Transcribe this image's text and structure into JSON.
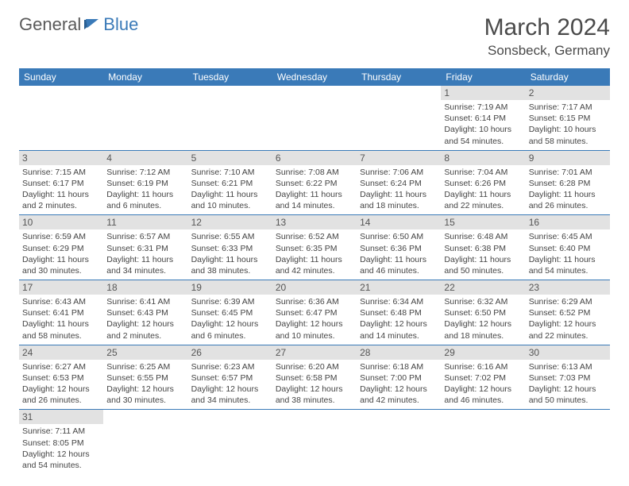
{
  "logo": {
    "main": "General",
    "accent": "Blue"
  },
  "title": "March 2024",
  "location": "Sonsbeck, Germany",
  "colors": {
    "header_bg": "#3a7ab8",
    "header_fg": "#ffffff",
    "daynum_bg": "#e2e2e2",
    "row_border": "#3a7ab8",
    "logo_gray": "#5a5a5a",
    "logo_blue": "#3a7ab8"
  },
  "weekdays": [
    "Sunday",
    "Monday",
    "Tuesday",
    "Wednesday",
    "Thursday",
    "Friday",
    "Saturday"
  ],
  "weeks": [
    [
      null,
      null,
      null,
      null,
      null,
      {
        "n": "1",
        "sr": "Sunrise: 7:19 AM",
        "ss": "Sunset: 6:14 PM",
        "dl": "Daylight: 10 hours and 54 minutes."
      },
      {
        "n": "2",
        "sr": "Sunrise: 7:17 AM",
        "ss": "Sunset: 6:15 PM",
        "dl": "Daylight: 10 hours and 58 minutes."
      }
    ],
    [
      {
        "n": "3",
        "sr": "Sunrise: 7:15 AM",
        "ss": "Sunset: 6:17 PM",
        "dl": "Daylight: 11 hours and 2 minutes."
      },
      {
        "n": "4",
        "sr": "Sunrise: 7:12 AM",
        "ss": "Sunset: 6:19 PM",
        "dl": "Daylight: 11 hours and 6 minutes."
      },
      {
        "n": "5",
        "sr": "Sunrise: 7:10 AM",
        "ss": "Sunset: 6:21 PM",
        "dl": "Daylight: 11 hours and 10 minutes."
      },
      {
        "n": "6",
        "sr": "Sunrise: 7:08 AM",
        "ss": "Sunset: 6:22 PM",
        "dl": "Daylight: 11 hours and 14 minutes."
      },
      {
        "n": "7",
        "sr": "Sunrise: 7:06 AM",
        "ss": "Sunset: 6:24 PM",
        "dl": "Daylight: 11 hours and 18 minutes."
      },
      {
        "n": "8",
        "sr": "Sunrise: 7:04 AM",
        "ss": "Sunset: 6:26 PM",
        "dl": "Daylight: 11 hours and 22 minutes."
      },
      {
        "n": "9",
        "sr": "Sunrise: 7:01 AM",
        "ss": "Sunset: 6:28 PM",
        "dl": "Daylight: 11 hours and 26 minutes."
      }
    ],
    [
      {
        "n": "10",
        "sr": "Sunrise: 6:59 AM",
        "ss": "Sunset: 6:29 PM",
        "dl": "Daylight: 11 hours and 30 minutes."
      },
      {
        "n": "11",
        "sr": "Sunrise: 6:57 AM",
        "ss": "Sunset: 6:31 PM",
        "dl": "Daylight: 11 hours and 34 minutes."
      },
      {
        "n": "12",
        "sr": "Sunrise: 6:55 AM",
        "ss": "Sunset: 6:33 PM",
        "dl": "Daylight: 11 hours and 38 minutes."
      },
      {
        "n": "13",
        "sr": "Sunrise: 6:52 AM",
        "ss": "Sunset: 6:35 PM",
        "dl": "Daylight: 11 hours and 42 minutes."
      },
      {
        "n": "14",
        "sr": "Sunrise: 6:50 AM",
        "ss": "Sunset: 6:36 PM",
        "dl": "Daylight: 11 hours and 46 minutes."
      },
      {
        "n": "15",
        "sr": "Sunrise: 6:48 AM",
        "ss": "Sunset: 6:38 PM",
        "dl": "Daylight: 11 hours and 50 minutes."
      },
      {
        "n": "16",
        "sr": "Sunrise: 6:45 AM",
        "ss": "Sunset: 6:40 PM",
        "dl": "Daylight: 11 hours and 54 minutes."
      }
    ],
    [
      {
        "n": "17",
        "sr": "Sunrise: 6:43 AM",
        "ss": "Sunset: 6:41 PM",
        "dl": "Daylight: 11 hours and 58 minutes."
      },
      {
        "n": "18",
        "sr": "Sunrise: 6:41 AM",
        "ss": "Sunset: 6:43 PM",
        "dl": "Daylight: 12 hours and 2 minutes."
      },
      {
        "n": "19",
        "sr": "Sunrise: 6:39 AM",
        "ss": "Sunset: 6:45 PM",
        "dl": "Daylight: 12 hours and 6 minutes."
      },
      {
        "n": "20",
        "sr": "Sunrise: 6:36 AM",
        "ss": "Sunset: 6:47 PM",
        "dl": "Daylight: 12 hours and 10 minutes."
      },
      {
        "n": "21",
        "sr": "Sunrise: 6:34 AM",
        "ss": "Sunset: 6:48 PM",
        "dl": "Daylight: 12 hours and 14 minutes."
      },
      {
        "n": "22",
        "sr": "Sunrise: 6:32 AM",
        "ss": "Sunset: 6:50 PM",
        "dl": "Daylight: 12 hours and 18 minutes."
      },
      {
        "n": "23",
        "sr": "Sunrise: 6:29 AM",
        "ss": "Sunset: 6:52 PM",
        "dl": "Daylight: 12 hours and 22 minutes."
      }
    ],
    [
      {
        "n": "24",
        "sr": "Sunrise: 6:27 AM",
        "ss": "Sunset: 6:53 PM",
        "dl": "Daylight: 12 hours and 26 minutes."
      },
      {
        "n": "25",
        "sr": "Sunrise: 6:25 AM",
        "ss": "Sunset: 6:55 PM",
        "dl": "Daylight: 12 hours and 30 minutes."
      },
      {
        "n": "26",
        "sr": "Sunrise: 6:23 AM",
        "ss": "Sunset: 6:57 PM",
        "dl": "Daylight: 12 hours and 34 minutes."
      },
      {
        "n": "27",
        "sr": "Sunrise: 6:20 AM",
        "ss": "Sunset: 6:58 PM",
        "dl": "Daylight: 12 hours and 38 minutes."
      },
      {
        "n": "28",
        "sr": "Sunrise: 6:18 AM",
        "ss": "Sunset: 7:00 PM",
        "dl": "Daylight: 12 hours and 42 minutes."
      },
      {
        "n": "29",
        "sr": "Sunrise: 6:16 AM",
        "ss": "Sunset: 7:02 PM",
        "dl": "Daylight: 12 hours and 46 minutes."
      },
      {
        "n": "30",
        "sr": "Sunrise: 6:13 AM",
        "ss": "Sunset: 7:03 PM",
        "dl": "Daylight: 12 hours and 50 minutes."
      }
    ],
    [
      {
        "n": "31",
        "sr": "Sunrise: 7:11 AM",
        "ss": "Sunset: 8:05 PM",
        "dl": "Daylight: 12 hours and 54 minutes."
      },
      null,
      null,
      null,
      null,
      null,
      null
    ]
  ]
}
